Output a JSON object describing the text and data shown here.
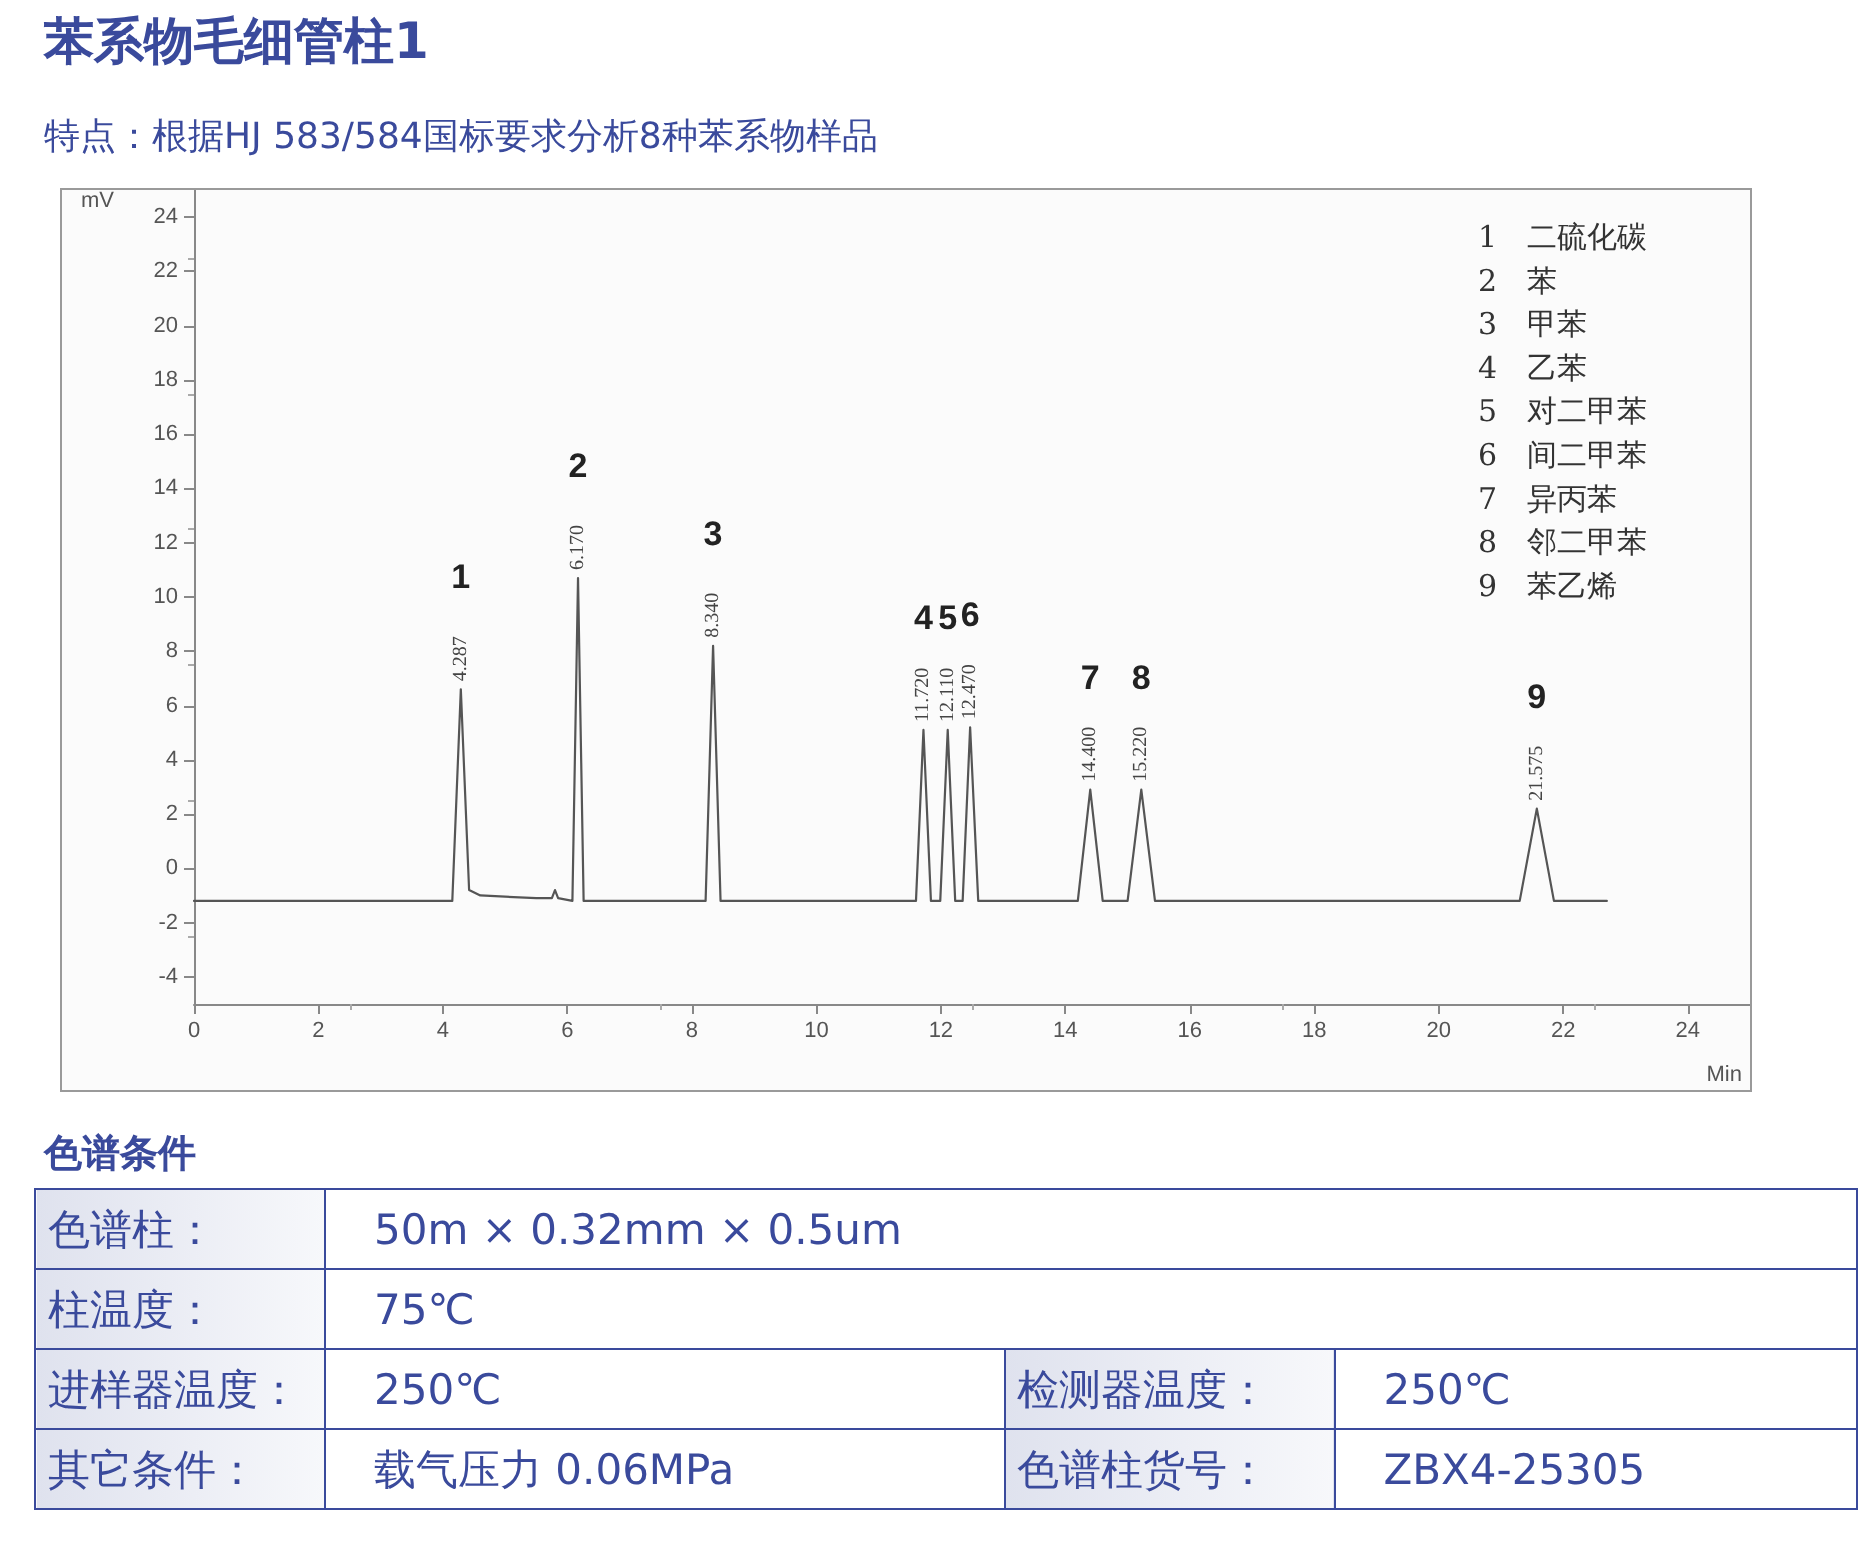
{
  "chart_data": [
    {
      "type": "line",
      "title": "苯系物毛细管柱1",
      "subtitle": "特点：根据HJ 583/584国标要求分析8种苯系物样品",
      "xlabel": "Min",
      "ylabel": "mV",
      "xlim": [
        0,
        25
      ],
      "xticks": [
        0,
        2,
        4,
        6,
        8,
        10,
        12,
        14,
        16,
        18,
        20,
        22,
        24
      ],
      "ylim": [
        -5,
        25
      ],
      "yticks": [
        -4,
        -2,
        0,
        2,
        4,
        6,
        8,
        10,
        12,
        14,
        16,
        18,
        20,
        22,
        24
      ],
      "grid": false,
      "marker": "none",
      "line_style": "solid",
      "series": [
        {
          "color": "#555555",
          "x": [
            0,
            4.15,
            4.287,
            4.42,
            4.6,
            5.5,
            5.75,
            5.8,
            5.85,
            6.08,
            6.17,
            6.26,
            8.22,
            8.34,
            8.46,
            11.6,
            11.72,
            11.84,
            11.99,
            12.11,
            12.23,
            12.35,
            12.47,
            12.6,
            14.2,
            14.4,
            14.6,
            15.0,
            15.22,
            15.44,
            21.3,
            21.575,
            21.85,
            22.7
          ],
          "values": [
            -1.2,
            -1.2,
            6.6,
            -0.8,
            -1.0,
            -1.1,
            -1.1,
            -0.8,
            -1.1,
            -1.2,
            10.7,
            -1.2,
            -1.2,
            8.2,
            -1.2,
            -1.2,
            5.1,
            -1.2,
            -1.2,
            5.1,
            -1.2,
            -1.2,
            5.2,
            -1.2,
            -1.2,
            2.9,
            -1.2,
            -1.2,
            2.9,
            -1.2,
            -1.2,
            2.2,
            -1.2,
            -1.2
          ]
        }
      ],
      "annotations": [
        {
          "text": "4.287",
          "x": 4.287,
          "y": 6.6
        },
        {
          "text": "6.170",
          "x": 6.17,
          "y": 10.7
        },
        {
          "text": "8.340",
          "x": 8.34,
          "y": 8.2
        },
        {
          "text": "11.720",
          "x": 11.72,
          "y": 5.1
        },
        {
          "text": "12.110",
          "x": 12.11,
          "y": 5.1
        },
        {
          "text": "12.470",
          "x": 12.47,
          "y": 5.2
        },
        {
          "text": "14.400",
          "x": 14.4,
          "y": 2.9
        },
        {
          "text": "15.220",
          "x": 15.22,
          "y": 2.9
        },
        {
          "text": "21.575",
          "x": 21.575,
          "y": 2.2
        },
        "1",
        "2",
        "3",
        "4",
        "5",
        "6",
        "7",
        "8",
        "9",
        "1　二硫化碳",
        "2　苯",
        "3　甲苯",
        "4　乙苯",
        "5　对二甲苯",
        "6　间二甲苯",
        "7　异丙苯",
        "8　邻二甲苯",
        "9　苯乙烯"
      ]
    },
    {
      "type": "other",
      "title": "色谱条件",
      "annotations": [
        "色谱柱：",
        "50m × 0.32mm × 0.5um",
        "柱温度：",
        "75℃",
        "进样器温度：",
        "250℃",
        "检测器温度：",
        "250℃",
        "其它条件：",
        "载气压力  0.06MPa",
        "色谱柱货号：",
        "ZBX4-25305"
      ]
    }
  ]
}
